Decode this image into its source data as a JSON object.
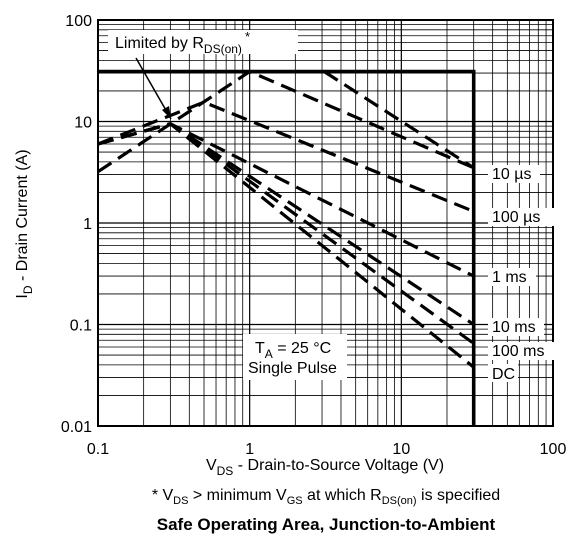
{
  "chart_data": {
    "type": "line",
    "title": "Safe Operating Area, Junction-to-Ambient",
    "xlabel": {
      "main": "V",
      "sub": "DS",
      "rest": " - Drain-to-Source Voltage (V)"
    },
    "ylabel": {
      "main": "I",
      "sub": "D",
      "rest": " - Drain Current (A)"
    },
    "footnote": {
      "p1": "* V",
      "s1": "DS",
      "p2": " > minimum V",
      "s2": "GS",
      "p3": " at which R",
      "s3": "DS(on)",
      "p4": " is specified"
    },
    "x_scale": "log",
    "y_scale": "log",
    "xlim": [
      0.1,
      100
    ],
    "ylim": [
      0.01,
      100
    ],
    "x_ticks": [
      "0.1",
      "1",
      "10",
      "100"
    ],
    "y_ticks": [
      "0.01",
      "0.1",
      "1",
      "10",
      "100"
    ],
    "grid": true,
    "annotations": {
      "limited_main": "Limited by R",
      "limited_sub": "DS(on)",
      "limited_star": "*",
      "ta_main": "T",
      "ta_sub": "A",
      "ta_rest": " = 25 °C",
      "pulse": "Single Pulse"
    },
    "boundary": {
      "x": [
        0.1,
        30,
        30
      ],
      "y": [
        31,
        31,
        0.01
      ]
    },
    "series": [
      {
        "name": "10 µs",
        "x": [
          0.1,
          1.0,
          30
        ],
        "y": [
          3.2,
          31,
          3.5
        ]
      },
      {
        "name": "100 µs",
        "x": [
          0.1,
          0.5,
          30
        ],
        "y": [
          6.0,
          15.5,
          1.3
        ]
      },
      {
        "name": "1 ms",
        "x": [
          0.1,
          0.3,
          30
        ],
        "y": [
          6.0,
          9.5,
          0.3
        ]
      },
      {
        "name": "10 ms",
        "x": [
          0.1,
          0.3,
          30
        ],
        "y": [
          6.0,
          9.5,
          0.1
        ]
      },
      {
        "name": "100 ms",
        "x": [
          0.1,
          0.3,
          30
        ],
        "y": [
          6.0,
          9.5,
          0.065
        ]
      },
      {
        "name": "DC",
        "x": [
          0.1,
          0.3,
          30
        ],
        "y": [
          6.0,
          9.5,
          0.038
        ]
      },
      {
        "name": "",
        "x": [
          3.1,
          30
        ],
        "y": [
          31,
          3.5
        ]
      }
    ],
    "series_labels": [
      "10 µs",
      "100 µs",
      "1 ms",
      "10 ms",
      "100 ms",
      "DC"
    ]
  }
}
